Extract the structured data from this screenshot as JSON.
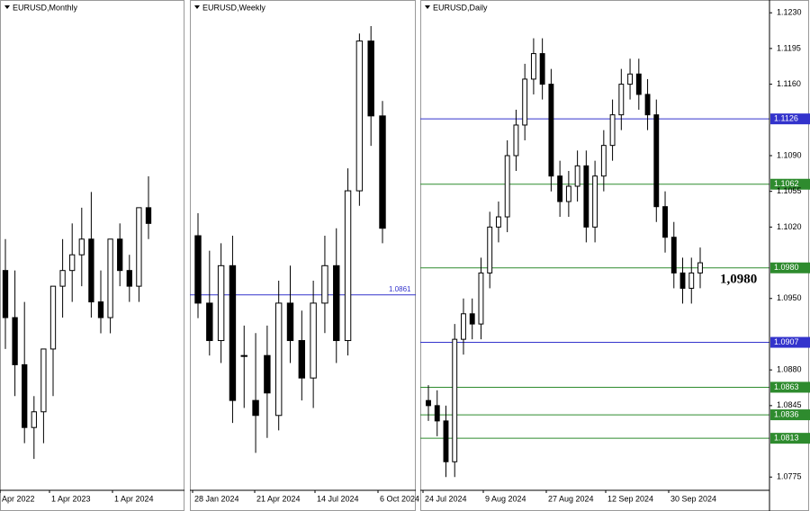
{
  "panels": [
    {
      "title": "EURUSD,Monthly",
      "x_labels": [
        "Apr 2022",
        "1 Apr 2023",
        "1 Apr 2024"
      ],
      "ylim": [
        0.94,
        1.25
      ],
      "candles": {
        "open": [
          1.08,
          1.05,
          1.02,
          0.98,
          0.99,
          1.03,
          1.07,
          1.08,
          1.09,
          1.1,
          1.06,
          1.05,
          1.1,
          1.08,
          1.07,
          1.12
        ],
        "high": [
          1.1,
          1.08,
          1.06,
          1.0,
          1.03,
          1.07,
          1.1,
          1.11,
          1.12,
          1.13,
          1.08,
          1.1,
          1.11,
          1.09,
          1.11,
          1.14
        ],
        "low": [
          1.03,
          1.0,
          0.97,
          0.96,
          0.97,
          1.0,
          1.05,
          1.06,
          1.07,
          1.05,
          1.04,
          1.04,
          1.07,
          1.06,
          1.06,
          1.1
        ],
        "close": [
          1.05,
          1.02,
          0.98,
          0.99,
          1.03,
          1.07,
          1.08,
          1.09,
          1.1,
          1.06,
          1.05,
          1.1,
          1.08,
          1.07,
          1.12,
          1.11
        ]
      }
    },
    {
      "title": "EURUSD,Weekly",
      "x_labels": [
        "28 Jan 2024",
        "21 Apr 2024",
        "14 Jul 2024",
        "6 Oct 2024"
      ],
      "ylim": [
        1.06,
        1.125
      ],
      "levels": [
        {
          "value": 1.0861,
          "label": "1.0861",
          "color": "#3333cc"
        }
      ],
      "candles": {
        "open": [
          1.094,
          1.085,
          1.08,
          1.09,
          1.078,
          1.072,
          1.078,
          1.07,
          1.085,
          1.08,
          1.075,
          1.085,
          1.09,
          1.08,
          1.1,
          1.12,
          1.11
        ],
        "high": [
          1.097,
          1.092,
          1.093,
          1.094,
          1.082,
          1.081,
          1.082,
          1.088,
          1.09,
          1.084,
          1.088,
          1.094,
          1.095,
          1.103,
          1.121,
          1.122,
          1.112
        ],
        "low": [
          1.083,
          1.078,
          1.077,
          1.069,
          1.071,
          1.065,
          1.067,
          1.068,
          1.077,
          1.072,
          1.071,
          1.081,
          1.077,
          1.078,
          1.098,
          1.106,
          1.093
        ],
        "close": [
          1.085,
          1.08,
          1.09,
          1.072,
          1.078,
          1.07,
          1.073,
          1.085,
          1.08,
          1.075,
          1.085,
          1.09,
          1.08,
          1.1,
          1.12,
          1.11,
          1.095
        ]
      }
    },
    {
      "title": "EURUSD,Daily",
      "x_labels": [
        "24 Jul 2024",
        "9 Aug 2024",
        "27 Aug 2024",
        "12 Sep 2024",
        "30 Sep 2024"
      ],
      "ylim": [
        1.0762,
        1.1239
      ],
      "yticks": [
        {
          "value": 1.123,
          "label": "1.1230"
        },
        {
          "value": 1.1195,
          "label": "1.1195"
        },
        {
          "value": 1.116,
          "label": "1.1160"
        },
        {
          "value": 1.109,
          "label": "1.1090"
        },
        {
          "value": 1.1055,
          "label": "1.1055"
        },
        {
          "value": 1.102,
          "label": "1.1020"
        },
        {
          "value": 1.095,
          "label": "1.0950"
        },
        {
          "value": 1.088,
          "label": "1.0880"
        },
        {
          "value": 1.0845,
          "label": "1.0845"
        },
        {
          "value": 1.0775,
          "label": "1.0775"
        }
      ],
      "levels": [
        {
          "value": 1.1126,
          "label": "1.1126",
          "color": "#3333cc"
        },
        {
          "value": 1.1062,
          "label": "1.1062",
          "color": "#2e8b2e"
        },
        {
          "value": 1.098,
          "label": "1.0980",
          "color": "#2e8b2e"
        },
        {
          "value": 1.0907,
          "label": "1.0907",
          "color": "#3333cc"
        },
        {
          "value": 1.0863,
          "label": "1.0863",
          "color": "#2e8b2e"
        },
        {
          "value": 1.0836,
          "label": "1.0836",
          "color": "#2e8b2e"
        },
        {
          "value": 1.0813,
          "label": "1.0813",
          "color": "#2e8b2e"
        }
      ],
      "annotation": "1,0980",
      "candles": {
        "open": [
          1.085,
          1.0845,
          1.083,
          1.079,
          1.091,
          1.0935,
          1.0925,
          1.0975,
          1.102,
          1.103,
          1.109,
          1.112,
          1.1165,
          1.119,
          1.116,
          1.107,
          1.1045,
          1.106,
          1.108,
          1.102,
          1.107,
          1.11,
          1.113,
          1.116,
          1.117,
          1.115,
          1.113,
          1.104,
          1.101,
          1.0975,
          1.096,
          1.0975
        ],
        "high": [
          1.0865,
          1.086,
          1.0845,
          1.0925,
          1.095,
          1.095,
          1.099,
          1.1035,
          1.1045,
          1.1105,
          1.1135,
          1.118,
          1.1205,
          1.1205,
          1.1175,
          1.1085,
          1.1075,
          1.1095,
          1.1095,
          1.1085,
          1.1115,
          1.1145,
          1.1175,
          1.1185,
          1.1185,
          1.1165,
          1.1145,
          1.1055,
          1.1025,
          1.099,
          1.099,
          1.1
        ],
        "low": [
          1.083,
          1.0815,
          1.0775,
          1.0775,
          1.0895,
          1.091,
          1.091,
          1.096,
          1.1005,
          1.1015,
          1.1075,
          1.1105,
          1.115,
          1.1145,
          1.1055,
          1.103,
          1.103,
          1.1045,
          1.1005,
          1.1005,
          1.1055,
          1.1085,
          1.1115,
          1.1145,
          1.1135,
          1.1115,
          1.1025,
          1.0995,
          1.096,
          1.0945,
          1.0945,
          1.096
        ],
        "close": [
          1.0845,
          1.083,
          1.079,
          1.091,
          1.0935,
          1.0925,
          1.0975,
          1.102,
          1.103,
          1.109,
          1.112,
          1.1165,
          1.119,
          1.116,
          1.107,
          1.1045,
          1.106,
          1.108,
          1.102,
          1.107,
          1.11,
          1.113,
          1.116,
          1.117,
          1.115,
          1.113,
          1.104,
          1.101,
          1.0975,
          1.096,
          1.0975,
          1.0985
        ]
      }
    }
  ]
}
